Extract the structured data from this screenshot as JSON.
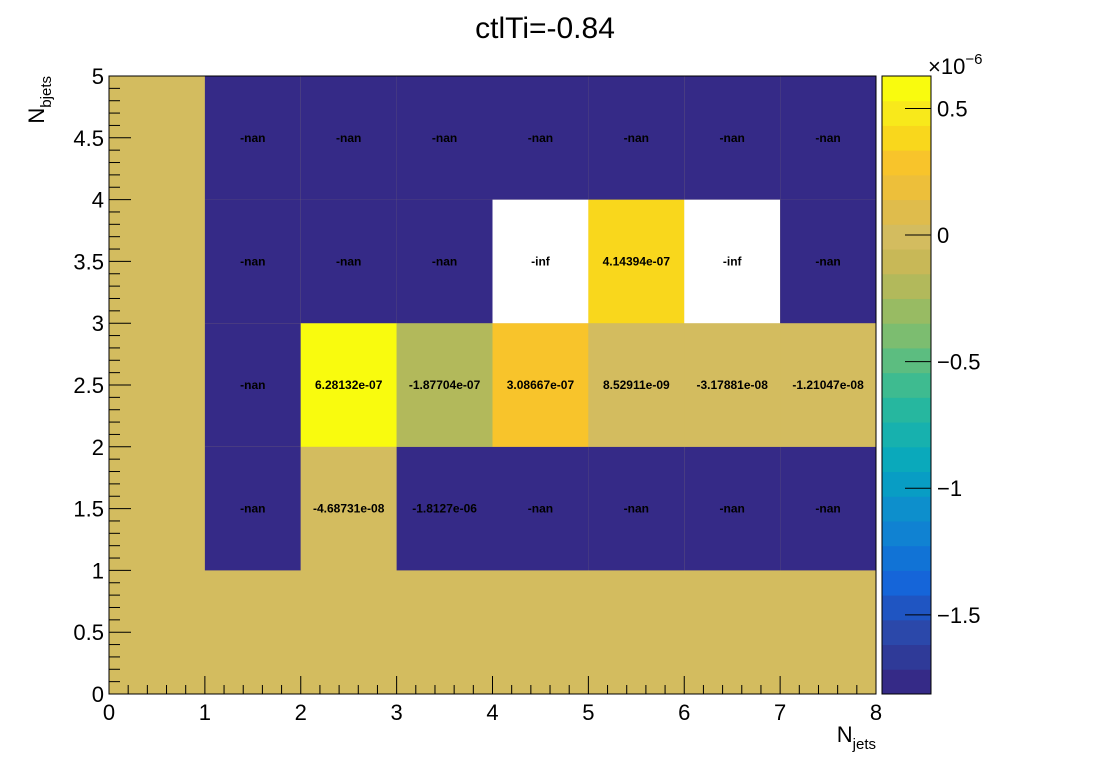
{
  "chart_data": {
    "type": "heatmap",
    "title": "ctlTi=-0.84",
    "xlabel": "N",
    "xlabel_sub": "jets",
    "ylabel": "N",
    "ylabel_sub": "bjets",
    "xlim": [
      0,
      8
    ],
    "ylim": [
      0,
      5
    ],
    "x_bin_edges": [
      0,
      1,
      2,
      3,
      4,
      5,
      6,
      7,
      8
    ],
    "y_bin_edges": [
      0,
      1,
      2,
      3,
      4,
      5
    ],
    "x_ticks": [
      "0",
      "1",
      "2",
      "3",
      "4",
      "5",
      "6",
      "7",
      "8"
    ],
    "y_ticks": [
      "0",
      "0.5",
      "1",
      "1.5",
      "2",
      "2.5",
      "3",
      "3.5",
      "4",
      "4.5",
      "5"
    ],
    "colorbar": {
      "min": -1.8127e-06,
      "max": 6.28132e-07,
      "multiplier": "×10",
      "exponent": "−6",
      "ticks": [
        {
          "value": 5e-07,
          "label": "0.5"
        },
        {
          "value": 0,
          "label": "0"
        },
        {
          "value": -5e-07,
          "label": "−0.5"
        },
        {
          "value": -1e-06,
          "label": "−1"
        },
        {
          "value": -1.5e-06,
          "label": "−1.5"
        }
      ]
    },
    "cells": [
      {
        "x": 1,
        "y": 1,
        "value": null,
        "label": "-nan"
      },
      {
        "x": 2,
        "y": 1,
        "value": -4.68731e-08,
        "label": "-4.68731e-08"
      },
      {
        "x": 3,
        "y": 1,
        "value": -1.8127e-06,
        "label": "-1.8127e-06"
      },
      {
        "x": 4,
        "y": 1,
        "value": null,
        "label": "-nan"
      },
      {
        "x": 5,
        "y": 1,
        "value": null,
        "label": "-nan"
      },
      {
        "x": 6,
        "y": 1,
        "value": null,
        "label": "-nan"
      },
      {
        "x": 7,
        "y": 1,
        "value": null,
        "label": "-nan"
      },
      {
        "x": 1,
        "y": 2,
        "value": null,
        "label": "-nan"
      },
      {
        "x": 2,
        "y": 2,
        "value": 6.28132e-07,
        "label": "6.28132e-07"
      },
      {
        "x": 3,
        "y": 2,
        "value": -1.87704e-07,
        "label": "-1.87704e-07"
      },
      {
        "x": 4,
        "y": 2,
        "value": 3.08667e-07,
        "label": "3.08667e-07"
      },
      {
        "x": 5,
        "y": 2,
        "value": 8.52911e-09,
        "label": "8.52911e-09"
      },
      {
        "x": 6,
        "y": 2,
        "value": -3.17881e-08,
        "label": "-3.17881e-08"
      },
      {
        "x": 7,
        "y": 2,
        "value": -1.21047e-08,
        "label": "-1.21047e-08"
      },
      {
        "x": 1,
        "y": 3,
        "value": null,
        "label": "-nan"
      },
      {
        "x": 2,
        "y": 3,
        "value": null,
        "label": "-nan"
      },
      {
        "x": 3,
        "y": 3,
        "value": null,
        "label": "-nan"
      },
      {
        "x": 4,
        "y": 3,
        "value": "-inf",
        "label": "-inf"
      },
      {
        "x": 5,
        "y": 3,
        "value": 4.14394e-07,
        "label": "4.14394e-07"
      },
      {
        "x": 6,
        "y": 3,
        "value": "-inf",
        "label": "-inf"
      },
      {
        "x": 7,
        "y": 3,
        "value": null,
        "label": "-nan"
      },
      {
        "x": 1,
        "y": 4,
        "value": null,
        "label": "-nan"
      },
      {
        "x": 2,
        "y": 4,
        "value": null,
        "label": "-nan"
      },
      {
        "x": 3,
        "y": 4,
        "value": null,
        "label": "-nan"
      },
      {
        "x": 4,
        "y": 4,
        "value": null,
        "label": "-nan"
      },
      {
        "x": 5,
        "y": 4,
        "value": null,
        "label": "-nan"
      },
      {
        "x": 6,
        "y": 4,
        "value": null,
        "label": "-nan"
      },
      {
        "x": 7,
        "y": 4,
        "value": null,
        "label": "-nan"
      }
    ],
    "colors": {
      "background_fill": "#d3bc5f",
      "nan_fill": "#352a87",
      "inf_fill": "#ffffff"
    },
    "palette": [
      "#352a87",
      "#2f3a98",
      "#2b48aa",
      "#1f55c2",
      "#1565d9",
      "#1173d6",
      "#1082d2",
      "#0d8fcc",
      "#089dc4",
      "#0aa9bb",
      "#17b1ae",
      "#26b79f",
      "#3ebb90",
      "#5cbd80",
      "#7cbd70",
      "#98bb63",
      "#b2b95b",
      "#c8b857",
      "#d3bc5f",
      "#dfbc4c",
      "#edbf3a",
      "#f8c42b",
      "#f9d71c",
      "#f8e91b",
      "#f9fb0e"
    ]
  }
}
